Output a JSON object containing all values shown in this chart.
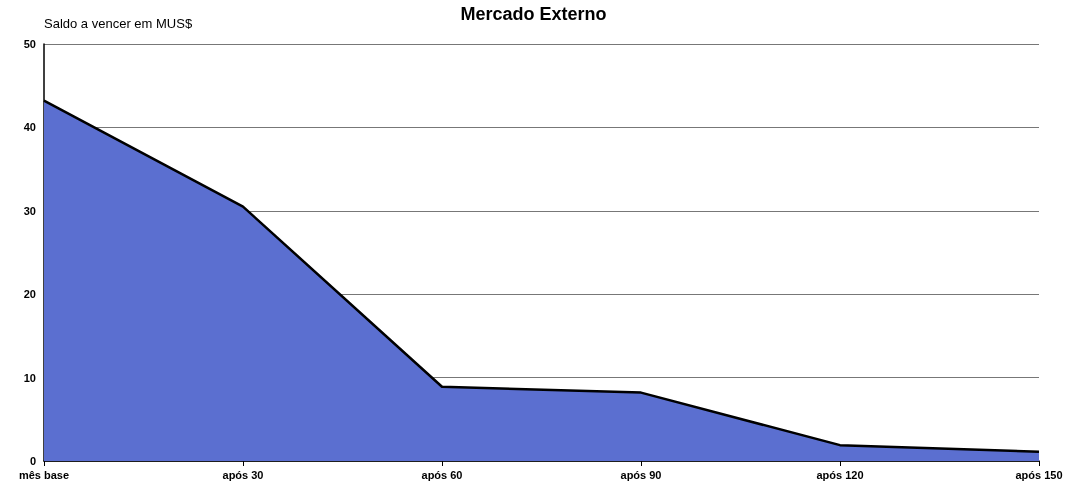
{
  "chart_data": {
    "type": "area",
    "title": "Mercado Externo",
    "ylabel": "Saldo a vencer em MUS$",
    "categories": [
      "mês base",
      "após 30",
      "após 60",
      "após 90",
      "após 120",
      "após 150"
    ],
    "series": [
      {
        "color": "#5b6fd0",
        "values": [
          43.2,
          30.5,
          8.9,
          8.2,
          1.9,
          1.1
        ]
      }
    ],
    "ylim": [
      0,
      50
    ],
    "yticks": [
      0,
      10,
      20,
      30,
      40,
      50
    ],
    "grid": "y",
    "marker": "none",
    "line_style": "solid"
  }
}
